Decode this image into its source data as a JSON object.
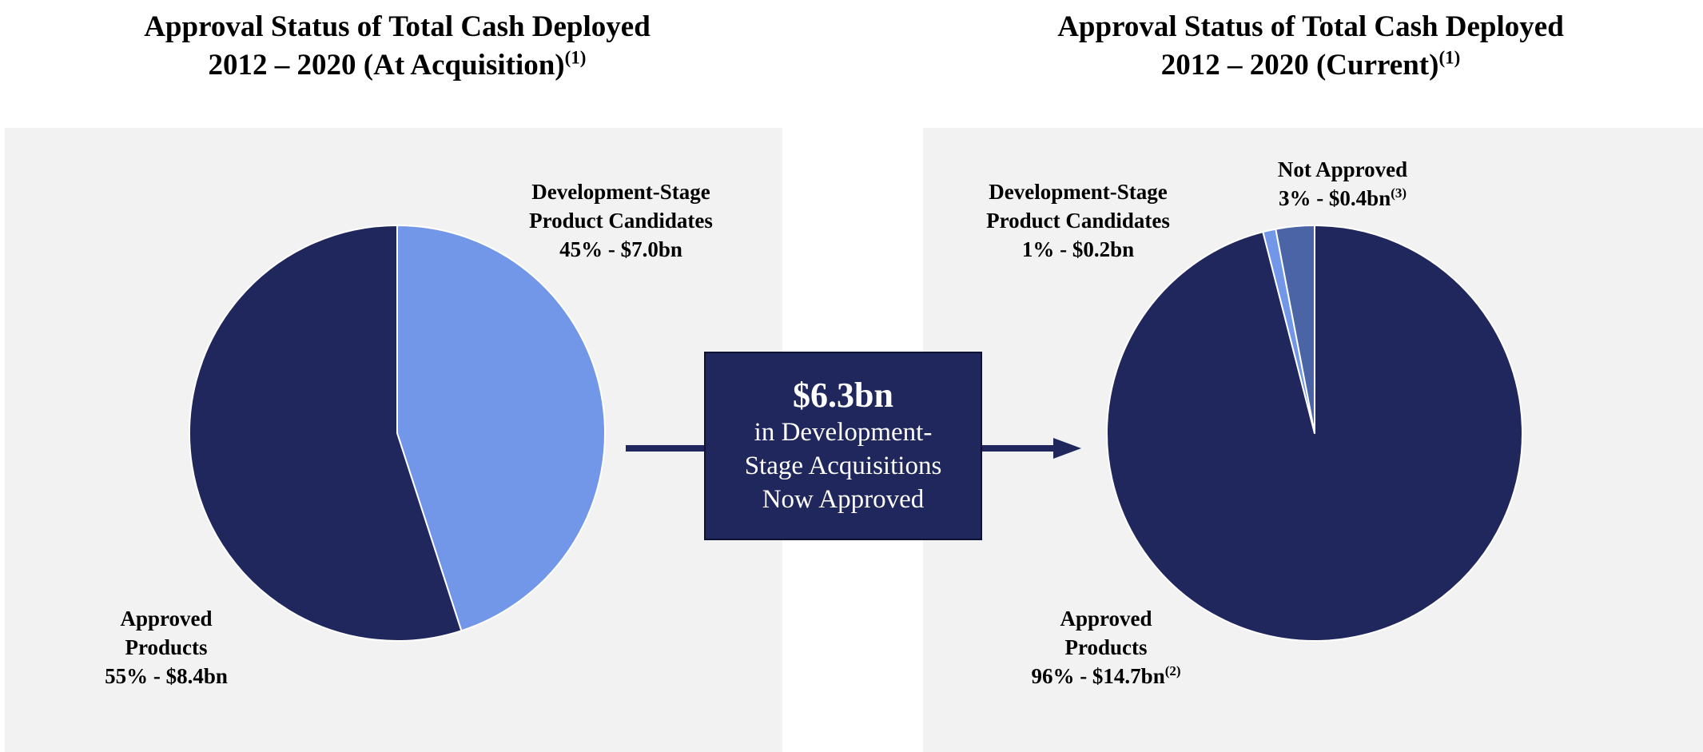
{
  "chart_data": [
    {
      "type": "pie",
      "title_line1": "Approval Status of Total Cash Deployed",
      "title_line2": "2012 – 2020 (At Acquisition)",
      "title_footnote": "(1)",
      "slices": [
        {
          "name": "Development-Stage Product Candidates",
          "label_lines": [
            "Development-Stage",
            "Product Candidates",
            "45% - $7.0bn"
          ],
          "footnote": "",
          "percent": 45,
          "value_bn": 7.0,
          "color": "#7297e8"
        },
        {
          "name": "Approved Products",
          "label_lines": [
            "Approved",
            "Products",
            "55% - $8.4bn"
          ],
          "footnote": "",
          "percent": 55,
          "value_bn": 8.4,
          "color": "#1f275c"
        }
      ]
    },
    {
      "type": "pie",
      "title_line1": "Approval Status of Total Cash Deployed",
      "title_line2": "2012 – 2020 (Current)",
      "title_footnote": "(1)",
      "slices": [
        {
          "name": "Approved Products",
          "label_lines": [
            "Approved",
            "Products",
            "96% - $14.7bn"
          ],
          "footnote": "(2)",
          "percent": 96,
          "value_bn": 14.7,
          "color": "#1f275c"
        },
        {
          "name": "Development-Stage Product Candidates",
          "label_lines": [
            "Development-Stage",
            "Product Candidates",
            "1% - $0.2bn"
          ],
          "footnote": "",
          "percent": 1,
          "value_bn": 0.2,
          "color": "#7297e8"
        },
        {
          "name": "Not Approved",
          "label_lines": [
            "Not Approved",
            "3% - $0.4bn"
          ],
          "footnote": "(3)",
          "percent": 3,
          "value_bn": 0.4,
          "color": "#4a64a6"
        }
      ]
    }
  ],
  "callout": {
    "amount": "$6.3bn",
    "line1": "in Development-",
    "line2": "Stage Acquisitions",
    "line3": "Now Approved"
  },
  "colors": {
    "panel_background": "#f2f2f2",
    "navy": "#1f275c",
    "light_blue": "#7297e8",
    "mid_blue": "#4a64a6"
  }
}
